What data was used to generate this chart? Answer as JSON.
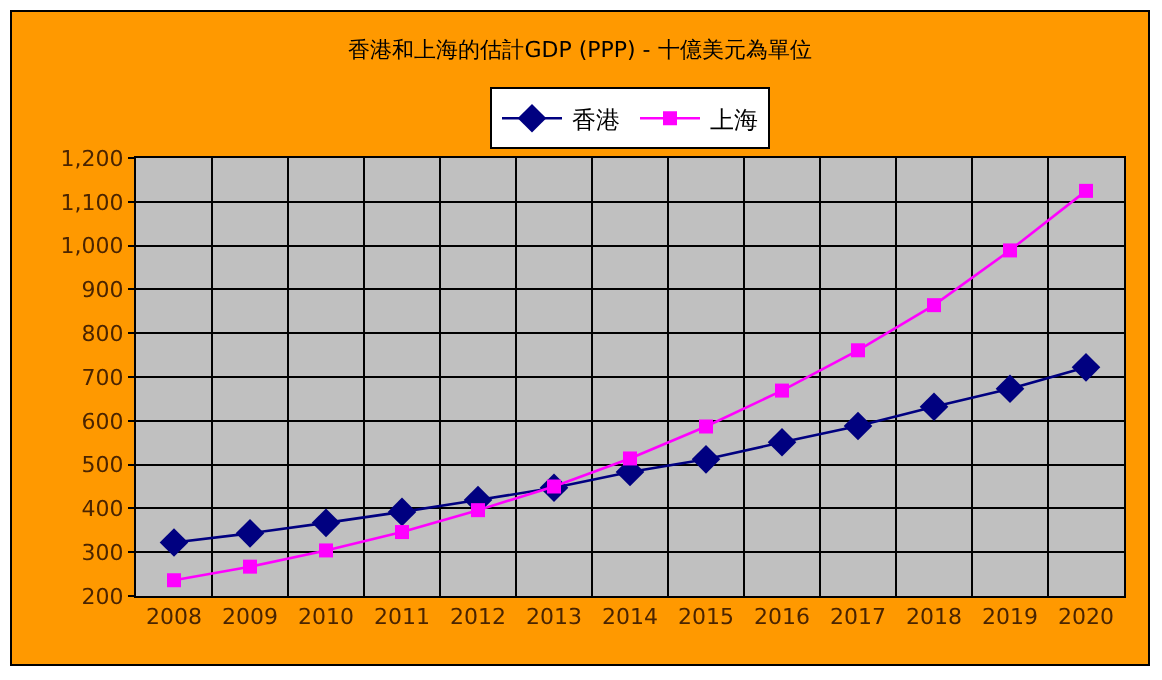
{
  "chart_data": {
    "type": "line",
    "title": "香港和上海的估計GDP (PPP) - 十億美元為單位",
    "categories": [
      "2008",
      "2009",
      "2010",
      "2011",
      "2012",
      "2013",
      "2014",
      "2015",
      "2016",
      "2017",
      "2018",
      "2019",
      "2020"
    ],
    "series": [
      {
        "name": "香港",
        "color": "#000080",
        "marker": "diamond",
        "values": [
          322,
          343,
          367,
          392,
          419,
          447,
          483,
          512,
          551,
          588,
          632,
          673,
          722
        ]
      },
      {
        "name": "上海",
        "color": "#ff00ff",
        "marker": "square",
        "values": [
          236,
          267,
          304,
          346,
          396,
          450,
          514,
          587,
          669,
          761,
          864,
          989,
          1125
        ]
      }
    ],
    "ylim": [
      200,
      1200
    ],
    "yticks": [
      200,
      300,
      400,
      500,
      600,
      700,
      800,
      900,
      {
        "value": 1000,
        "label": "1,000"
      },
      {
        "value": 1100,
        "label": "1,100"
      },
      {
        "value": 1200,
        "label": "1,200"
      }
    ],
    "grid": true,
    "legend": "top",
    "line_style": "solid"
  }
}
